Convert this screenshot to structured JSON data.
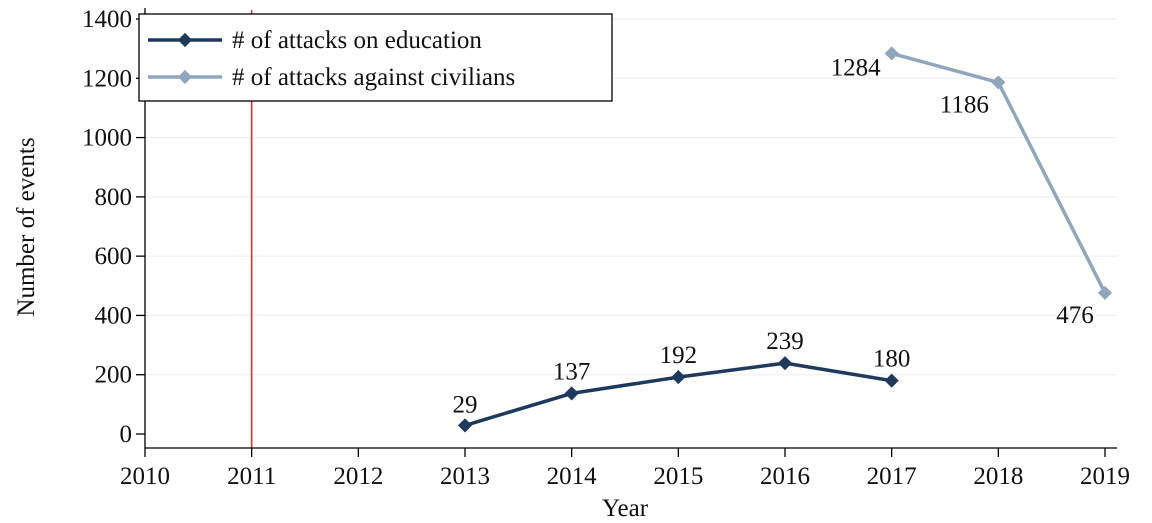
{
  "chart_data": {
    "type": "line",
    "title": "",
    "xlabel": "Year",
    "ylabel": "Number of events",
    "x_ticks": [
      2010,
      2011,
      2012,
      2013,
      2014,
      2015,
      2016,
      2017,
      2018,
      2019
    ],
    "y_ticks": [
      0,
      200,
      400,
      600,
      800,
      1000,
      1200,
      1400
    ],
    "xlim": [
      2010,
      2019
    ],
    "ylim": [
      -50,
      1430
    ],
    "grid": "horizontal",
    "legend_position": "top-left",
    "vertical_line": {
      "x": 2011,
      "color": "#e8302f"
    },
    "series": [
      {
        "name": "# of attacks on education",
        "color": "#1d3a5c",
        "points": [
          {
            "x": 2013,
            "y": 29,
            "label": "29"
          },
          {
            "x": 2014,
            "y": 137,
            "label": "137"
          },
          {
            "x": 2015,
            "y": 192,
            "label": "192"
          },
          {
            "x": 2016,
            "y": 239,
            "label": "239"
          },
          {
            "x": 2017,
            "y": 180,
            "label": "180"
          }
        ]
      },
      {
        "name": "# of attacks against civilians",
        "color": "#8fa6bd",
        "points": [
          {
            "x": 2017,
            "y": 1284,
            "label": "1284"
          },
          {
            "x": 2018,
            "y": 1186,
            "label": "1186"
          },
          {
            "x": 2019,
            "y": 476,
            "label": "476"
          }
        ]
      }
    ]
  }
}
